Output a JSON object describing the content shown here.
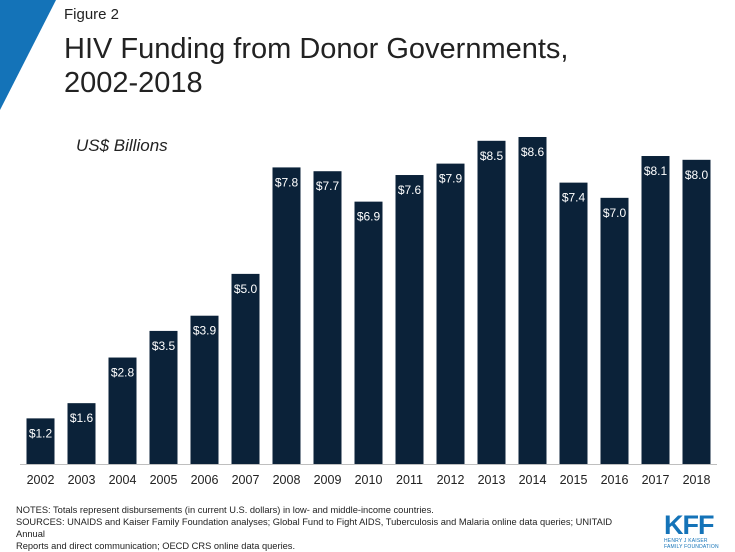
{
  "header": {
    "figure_label": "Figure 2",
    "title_line1": "HIV Funding from Donor Governments,",
    "title_line2": "2002-2018"
  },
  "colors": {
    "bar": "#0b2239",
    "accent": "#1473b8",
    "label_text": "#ffffff"
  },
  "chart_data": {
    "type": "bar",
    "title": "HIV Funding from Donor Governments, 2002-2018",
    "ylabel": "US$ Billions",
    "categories": [
      "2002",
      "2003",
      "2004",
      "2005",
      "2006",
      "2007",
      "2008",
      "2009",
      "2010",
      "2011",
      "2012",
      "2013",
      "2014",
      "2015",
      "2016",
      "2017",
      "2018"
    ],
    "values": [
      1.2,
      1.6,
      2.8,
      3.5,
      3.9,
      5.0,
      7.8,
      7.7,
      6.9,
      7.6,
      7.9,
      8.5,
      8.6,
      7.4,
      7.0,
      8.1,
      8.0
    ],
    "data_labels": [
      "$1.2",
      "$1.6",
      "$2.8",
      "$3.5",
      "$3.9",
      "$5.0",
      "$7.8",
      "$7.7",
      "$6.9",
      "$7.6",
      "$7.9",
      "$8.5",
      "$8.6",
      "$7.4",
      "$7.0",
      "$8.1",
      "$8.0"
    ],
    "ylim": [
      0,
      8.6
    ],
    "grid": false,
    "legend": "none"
  },
  "footer": {
    "notes": "NOTES: Totals represent disbursements (in current U.S. dollars) in low- and middle-income countries.",
    "sources_line1": "SOURCES: UNAIDS and Kaiser Family Foundation analyses; Global Fund to Fight AIDS,  Tuberculosis and Malaria online data queries; UNITAID Annual",
    "sources_line2": "Reports and direct communication; OECD CRS online data queries."
  },
  "logo": {
    "mark": "KFF",
    "sub_line1": "HENRY J KAISER",
    "sub_line2": "FAMILY FOUNDATION"
  }
}
